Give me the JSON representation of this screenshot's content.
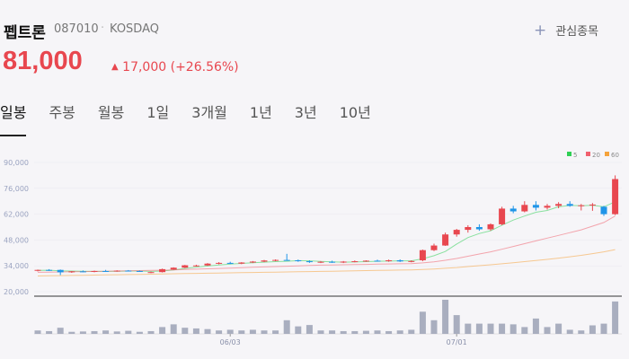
{
  "stock": {
    "name": "펩트론",
    "code": "087010",
    "market": "KOSDAQ",
    "watch_label": "관심종목",
    "price": {
      "value": 81000,
      "label": "81,000"
    },
    "change": {
      "value": 17000,
      "label": "17,000"
    },
    "change_pct": {
      "value": 26.56,
      "label": "(+26.56%)"
    }
  },
  "tabs": [
    "일봉",
    "주봉",
    "월봉",
    "1일",
    "3개월",
    "1년",
    "3년",
    "10년"
  ],
  "chart_data": {
    "type": "candlestick",
    "categories": [
      null,
      null,
      null,
      null,
      null,
      null,
      null,
      null,
      null,
      null,
      null,
      null,
      null,
      null,
      null,
      null,
      null,
      "06/03",
      null,
      null,
      null,
      null,
      null,
      null,
      null,
      null,
      null,
      null,
      null,
      null,
      null,
      null,
      null,
      null,
      null,
      null,
      null,
      "07/01",
      null,
      null,
      null,
      null,
      null,
      null,
      null,
      null,
      null,
      null,
      null,
      null,
      null,
      null
    ],
    "open": [
      31500,
      31800,
      31800,
      30500,
      31000,
      30800,
      31200,
      31000,
      31400,
      31200,
      30400,
      30600,
      32000,
      33000,
      34000,
      34200,
      35200,
      35600,
      35200,
      35800,
      36300,
      36900,
      37200,
      37000,
      36500,
      35800,
      36200,
      35800,
      36300,
      36500,
      36800,
      36600,
      37000,
      36400,
      37000,
      42500,
      45000,
      51000,
      53500,
      55000,
      53800,
      56500,
      65000,
      63500,
      67000,
      65500,
      66500,
      67500,
      66500,
      66800,
      66000,
      62000
    ],
    "high": [
      32000,
      32200,
      32000,
      31200,
      31500,
      31400,
      31800,
      31600,
      31700,
      31500,
      30900,
      32500,
      33200,
      34500,
      34600,
      35500,
      36000,
      36200,
      36000,
      36600,
      37200,
      37500,
      40500,
      37400,
      37000,
      36600,
      36800,
      36600,
      36900,
      37000,
      37300,
      37400,
      37500,
      37000,
      42800,
      46000,
      52000,
      54000,
      56000,
      56500,
      57000,
      66000,
      66500,
      69000,
      69000,
      67500,
      68500,
      69000,
      67500,
      68000,
      66500,
      83000
    ],
    "low": [
      31000,
      31300,
      29000,
      30200,
      30600,
      30500,
      30900,
      30800,
      31000,
      30800,
      30000,
      30400,
      31800,
      32800,
      33600,
      34000,
      34800,
      35000,
      34900,
      35500,
      36000,
      36500,
      36800,
      36200,
      35600,
      35500,
      35600,
      35500,
      35900,
      36200,
      36400,
      36200,
      36100,
      35900,
      36500,
      42000,
      44800,
      49800,
      52000,
      53000,
      53000,
      56000,
      62500,
      63000,
      64000,
      64500,
      65200,
      66000,
      64000,
      63800,
      61000,
      61500
    ],
    "close": [
      31800,
      31600,
      30500,
      31000,
      30800,
      31200,
      31000,
      31400,
      31200,
      31100,
      30600,
      32200,
      33000,
      34300,
      34200,
      35200,
      35600,
      35400,
      35800,
      36300,
      36900,
      37200,
      37000,
      36500,
      36000,
      36200,
      35800,
      36300,
      36500,
      36800,
      36600,
      37000,
      36400,
      36600,
      42500,
      45000,
      51000,
      53500,
      55000,
      53800,
      56500,
      65000,
      63500,
      67000,
      65500,
      66500,
      67500,
      66500,
      66800,
      67200,
      62000,
      81000
    ],
    "up_color": "#e8474f",
    "down_color": "#1f95e8",
    "ylim": [
      20000,
      90000
    ],
    "yticks": [
      {
        "value": 20000,
        "label": "20,000"
      },
      {
        "value": 34000,
        "label": "34,000"
      },
      {
        "value": 48000,
        "label": "48,000"
      },
      {
        "value": 62000,
        "label": "62,000"
      },
      {
        "value": 76000,
        "label": "76,000"
      },
      {
        "value": 90000,
        "label": "90,000"
      }
    ],
    "series": [
      {
        "name": "5",
        "color": "#2fcf55",
        "values": [
          31500,
          31600,
          31300,
          31200,
          31100,
          31000,
          31000,
          31100,
          31200,
          31200,
          31000,
          31200,
          31800,
          32600,
          33300,
          33900,
          34500,
          34900,
          35300,
          35700,
          36000,
          36300,
          36500,
          36800,
          36700,
          36400,
          36200,
          36000,
          36100,
          36300,
          36500,
          36600,
          36700,
          36700,
          37800,
          39500,
          41800,
          45800,
          49300,
          51500,
          53000,
          56000,
          58800,
          61000,
          63000,
          64000,
          66000,
          66700,
          66500,
          66800,
          66000,
          68700
        ]
      },
      {
        "name": "20",
        "color": "#f0606e",
        "values": [
          30500,
          30600,
          30700,
          30800,
          30900,
          31000,
          31100,
          31200,
          31300,
          31400,
          31500,
          31600,
          31800,
          32000,
          32200,
          32400,
          32600,
          32800,
          33000,
          33200,
          33400,
          33600,
          33800,
          34000,
          34200,
          34400,
          34500,
          34600,
          34700,
          34800,
          34900,
          35000,
          35100,
          35200,
          35600,
          36200,
          37000,
          38000,
          39200,
          40400,
          41600,
          43000,
          44500,
          46000,
          47500,
          49000,
          50500,
          52000,
          53500,
          55500,
          57500,
          61000
        ]
      },
      {
        "name": "60",
        "color": "#f5a33c",
        "values": [
          28500,
          28600,
          28700,
          28800,
          28900,
          29000,
          29100,
          29200,
          29300,
          29400,
          29500,
          29600,
          29700,
          29800,
          29900,
          30000,
          30100,
          30200,
          30300,
          30400,
          30500,
          30600,
          30700,
          30800,
          30900,
          31000,
          31100,
          31200,
          31300,
          31400,
          31500,
          31600,
          31700,
          31800,
          32000,
          32300,
          32700,
          33100,
          33600,
          34100,
          34600,
          35100,
          35700,
          36300,
          36900,
          37500,
          38200,
          38900,
          39700,
          40600,
          41600,
          42800
        ]
      }
    ],
    "volume": {
      "color": "#a9aebf",
      "values": [
        100,
        80,
        180,
        60,
        70,
        80,
        100,
        70,
        90,
        60,
        80,
        200,
        280,
        180,
        160,
        140,
        100,
        120,
        100,
        120,
        100,
        100,
        400,
        220,
        260,
        100,
        100,
        80,
        80,
        90,
        100,
        80,
        100,
        120,
        650,
        400,
        1000,
        550,
        300,
        300,
        300,
        300,
        280,
        200,
        450,
        200,
        300,
        120,
        100,
        250,
        300,
        950
      ]
    }
  }
}
